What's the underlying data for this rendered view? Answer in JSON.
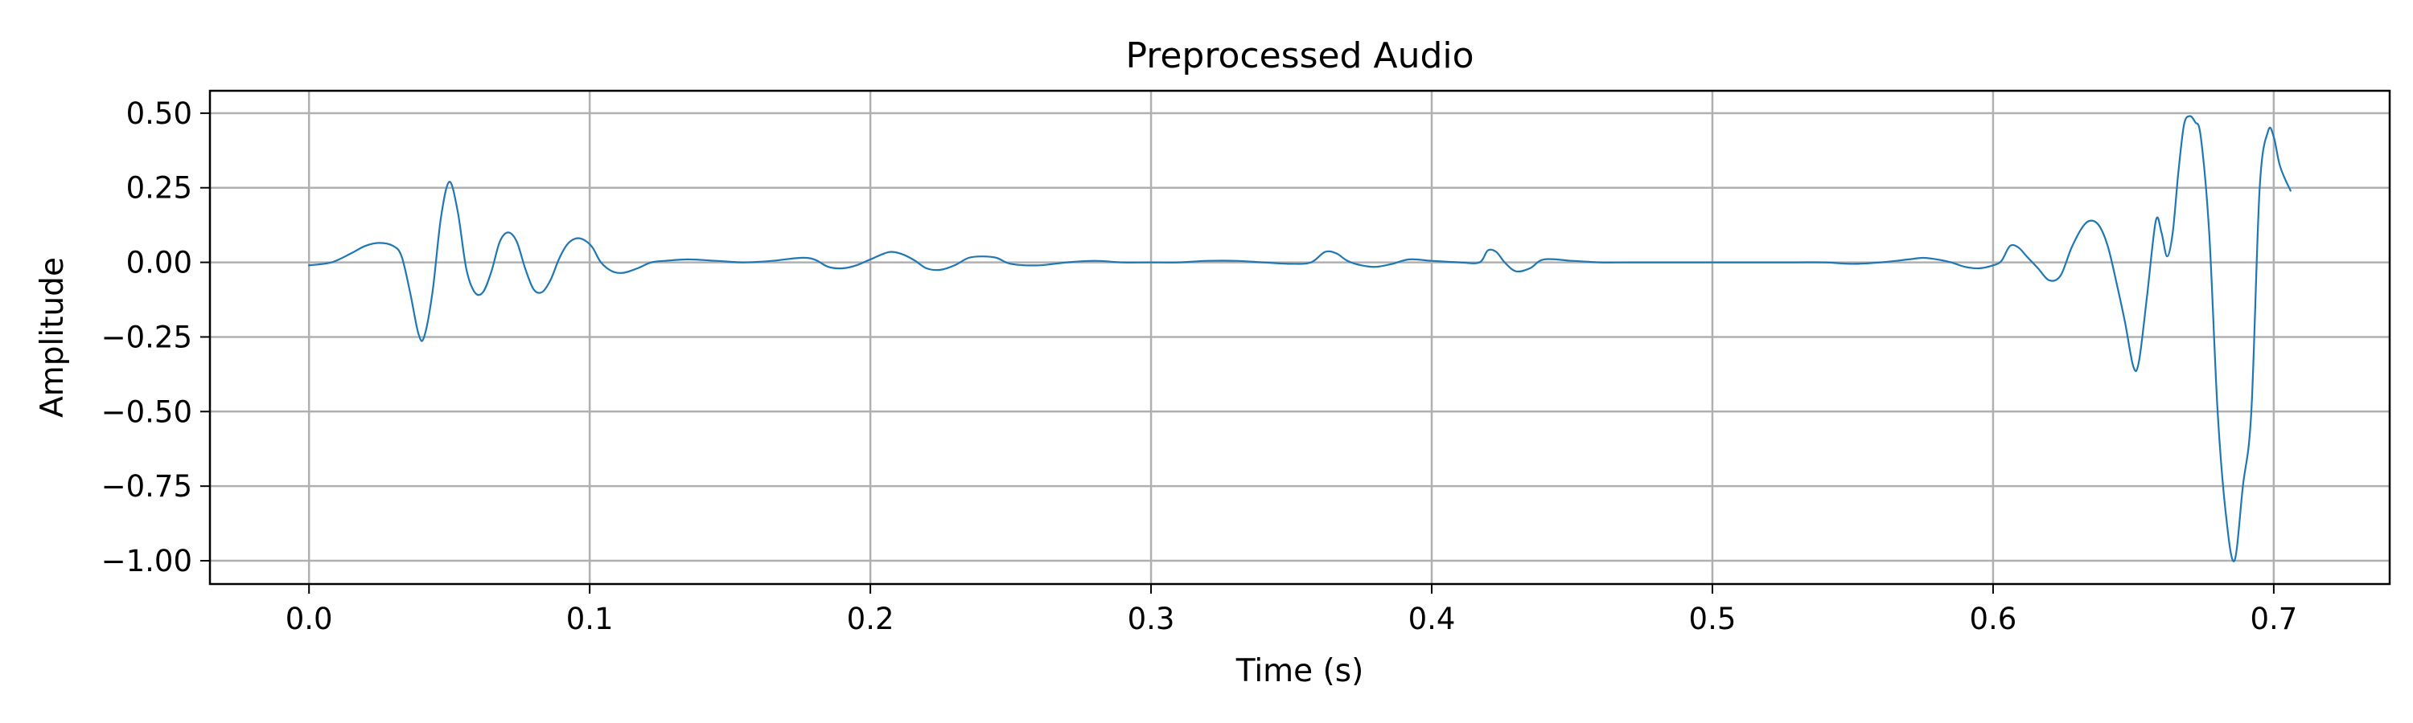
{
  "chart_data": {
    "type": "line",
    "title": "Preprocessed Audio",
    "xlabel": "Time (s)",
    "ylabel": "Amplitude",
    "xlim": [
      -0.0353,
      0.7413
    ],
    "ylim": [
      -1.078,
      0.575
    ],
    "grid": true,
    "xticks": [
      0.0,
      0.1,
      0.2,
      0.3,
      0.4,
      0.5,
      0.6,
      0.7
    ],
    "xtick_labels": [
      "0.0",
      "0.1",
      "0.2",
      "0.3",
      "0.4",
      "0.5",
      "0.6",
      "0.7"
    ],
    "yticks": [
      0.5,
      0.25,
      0.0,
      -0.25,
      -0.5,
      -0.75,
      -1.0
    ],
    "ytick_labels": [
      "0.50",
      "0.25",
      "0.00",
      "−0.25",
      "−0.50",
      "−0.75",
      "−1.00"
    ],
    "colors": {
      "series": "#1f77b4",
      "grid": "#b0b0b0",
      "axes": "#000000"
    },
    "series": [
      {
        "x": [
          0.0,
          0.008,
          0.015,
          0.02,
          0.025,
          0.03,
          0.033,
          0.036,
          0.039,
          0.041,
          0.044,
          0.047,
          0.05,
          0.053,
          0.056,
          0.059,
          0.062,
          0.065,
          0.068,
          0.071,
          0.074,
          0.077,
          0.08,
          0.083,
          0.086,
          0.089,
          0.092,
          0.095,
          0.098,
          0.101,
          0.104,
          0.108,
          0.112,
          0.117,
          0.122,
          0.127,
          0.135,
          0.145,
          0.155,
          0.165,
          0.175,
          0.18,
          0.185,
          0.19,
          0.195,
          0.2,
          0.205,
          0.208,
          0.212,
          0.216,
          0.22,
          0.225,
          0.23,
          0.235,
          0.24,
          0.245,
          0.25,
          0.26,
          0.27,
          0.28,
          0.29,
          0.3,
          0.31,
          0.32,
          0.33,
          0.34,
          0.35,
          0.357,
          0.362,
          0.366,
          0.37,
          0.375,
          0.38,
          0.386,
          0.392,
          0.4,
          0.41,
          0.417,
          0.42,
          0.423,
          0.426,
          0.43,
          0.435,
          0.44,
          0.45,
          0.46,
          0.47,
          0.48,
          0.49,
          0.5,
          0.51,
          0.52,
          0.53,
          0.54,
          0.55,
          0.56,
          0.57,
          0.575,
          0.58,
          0.585,
          0.59,
          0.595,
          0.6,
          0.603,
          0.606,
          0.609,
          0.612,
          0.616,
          0.62,
          0.624,
          0.628,
          0.632,
          0.635,
          0.638,
          0.641,
          0.644,
          0.647,
          0.65,
          0.652,
          0.655,
          0.658,
          0.66,
          0.662,
          0.664,
          0.666,
          0.668,
          0.67,
          0.672,
          0.674,
          0.677,
          0.68,
          0.683,
          0.686,
          0.689,
          0.692,
          0.695,
          0.698,
          0.7,
          0.702,
          0.704,
          0.706
        ],
        "y": [
          -0.01,
          0.0,
          0.03,
          0.055,
          0.065,
          0.055,
          0.02,
          -0.1,
          -0.24,
          -0.25,
          -0.1,
          0.15,
          0.27,
          0.17,
          -0.02,
          -0.1,
          -0.1,
          -0.03,
          0.07,
          0.1,
          0.07,
          -0.02,
          -0.09,
          -0.1,
          -0.06,
          0.01,
          0.06,
          0.08,
          0.075,
          0.05,
          0.0,
          -0.03,
          -0.035,
          -0.02,
          0.0,
          0.005,
          0.01,
          0.005,
          0.0,
          0.005,
          0.015,
          0.01,
          -0.015,
          -0.02,
          -0.01,
          0.01,
          0.03,
          0.035,
          0.025,
          0.005,
          -0.02,
          -0.025,
          -0.01,
          0.015,
          0.02,
          0.015,
          -0.005,
          -0.01,
          0.0,
          0.005,
          0.0,
          0.0,
          0.0,
          0.005,
          0.005,
          0.0,
          -0.005,
          0.0,
          0.035,
          0.03,
          0.005,
          -0.01,
          -0.015,
          -0.005,
          0.01,
          0.005,
          0.0,
          0.0,
          0.04,
          0.035,
          0.0,
          -0.03,
          -0.02,
          0.01,
          0.005,
          0.0,
          0.0,
          0.0,
          0.0,
          0.0,
          0.0,
          0.0,
          0.0,
          0.0,
          -0.005,
          0.0,
          0.01,
          0.015,
          0.01,
          0.0,
          -0.015,
          -0.02,
          -0.01,
          0.005,
          0.055,
          0.05,
          0.02,
          -0.02,
          -0.06,
          -0.045,
          0.05,
          0.12,
          0.14,
          0.12,
          0.05,
          -0.07,
          -0.2,
          -0.35,
          -0.33,
          -0.1,
          0.14,
          0.1,
          0.02,
          0.1,
          0.3,
          0.46,
          0.49,
          0.47,
          0.42,
          0.1,
          -0.5,
          -0.85,
          -1.0,
          -0.75,
          -0.5,
          0.25,
          0.44,
          0.42,
          0.33,
          0.28,
          0.24
        ]
      }
    ]
  }
}
